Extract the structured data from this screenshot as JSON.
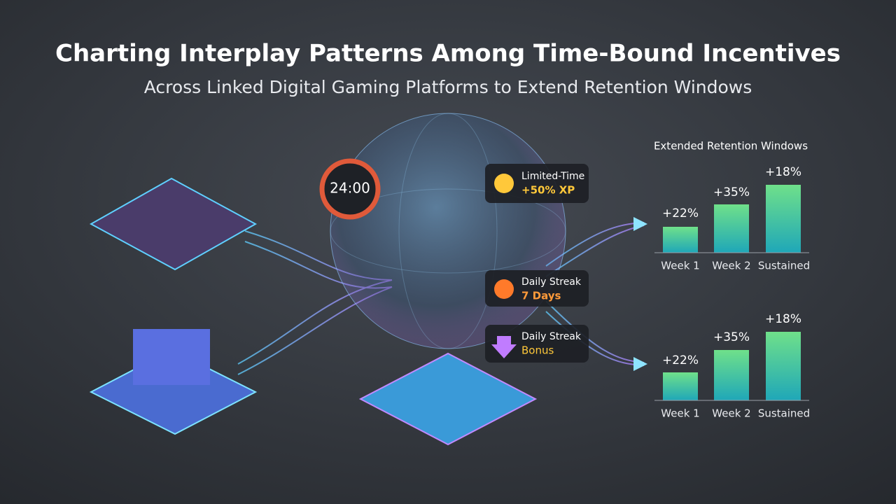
{
  "header": {
    "title": "Charting Interplay Patterns Among Time-Bound Incentives",
    "subtitle": "Across Linked Digital Gaming Platforms to Extend Retention Windows"
  },
  "timer": {
    "label": "24:00"
  },
  "badges": [
    {
      "line1": "Limited-Time",
      "line2": "+50% XP"
    },
    {
      "line1": "Daily Streak",
      "line2": "7 Days"
    },
    {
      "line1": "Daily Streak",
      "line2": "Bonus"
    }
  ],
  "retention_panels": [
    {
      "title": "Extended Retention Windows",
      "bars": [
        {
          "value_label": "+22%",
          "category": "Week 1"
        },
        {
          "value_label": "+35%",
          "category": "Week 2"
        },
        {
          "value_label": "+18%",
          "category": "Sustained"
        }
      ]
    },
    {
      "bars": [
        {
          "value_label": "+22%",
          "category": "Week 1"
        },
        {
          "value_label": "+35%",
          "category": "Week 2"
        },
        {
          "value_label": "+18%",
          "category": "Sustained"
        }
      ]
    }
  ]
}
